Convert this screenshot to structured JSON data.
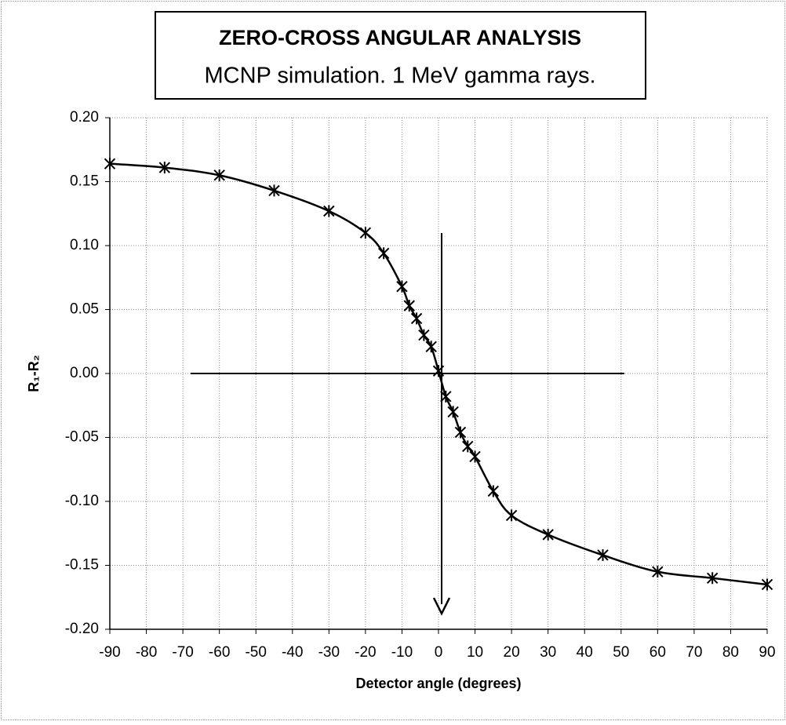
{
  "chart_data": {
    "type": "scatter",
    "title": "ZERO-CROSS ANGULAR ANALYSIS",
    "subtitle": "MCNP simulation.  1 MeV gamma rays.",
    "xlabel": "Detector angle (degrees)",
    "ylabel": "R₁-R₂",
    "x": [
      -90,
      -75,
      -60,
      -45,
      -30,
      -20,
      -15,
      -10,
      -8,
      -6,
      -4,
      -2,
      0,
      2,
      4,
      6,
      8,
      10,
      15,
      20,
      30,
      45,
      60,
      75,
      90
    ],
    "series": [
      {
        "color": "#000000",
        "values": [
          0.164,
          0.161,
          0.155,
          0.143,
          0.127,
          0.11,
          0.094,
          0.068,
          0.053,
          0.043,
          0.03,
          0.021,
          0.002,
          -0.018,
          -0.03,
          -0.046,
          -0.057,
          -0.065,
          -0.092,
          -0.111,
          -0.126,
          -0.142,
          -0.155,
          -0.16,
          -0.165
        ]
      }
    ],
    "smooth_line": true,
    "xlim": [
      -90,
      90
    ],
    "xticks": [
      -90,
      -80,
      -70,
      -60,
      -50,
      -40,
      -30,
      -20,
      -10,
      0,
      10,
      20,
      30,
      40,
      50,
      60,
      70,
      80,
      90
    ],
    "ylim": [
      -0.2,
      0.2
    ],
    "yticks": [
      {
        "value": -0.2,
        "label": "-0.20"
      },
      {
        "value": -0.15,
        "label": "-0.15"
      },
      {
        "value": -0.1,
        "label": "-0.10"
      },
      {
        "value": -0.05,
        "label": "-0.05"
      },
      {
        "value": 0,
        "label": "0.00"
      },
      {
        "value": 0.05,
        "label": "0.05"
      },
      {
        "value": 0.1,
        "label": "0.10"
      },
      {
        "value": 0.15,
        "label": "0.15"
      },
      {
        "value": 0.2,
        "label": "0.20"
      }
    ],
    "grid": true
  }
}
